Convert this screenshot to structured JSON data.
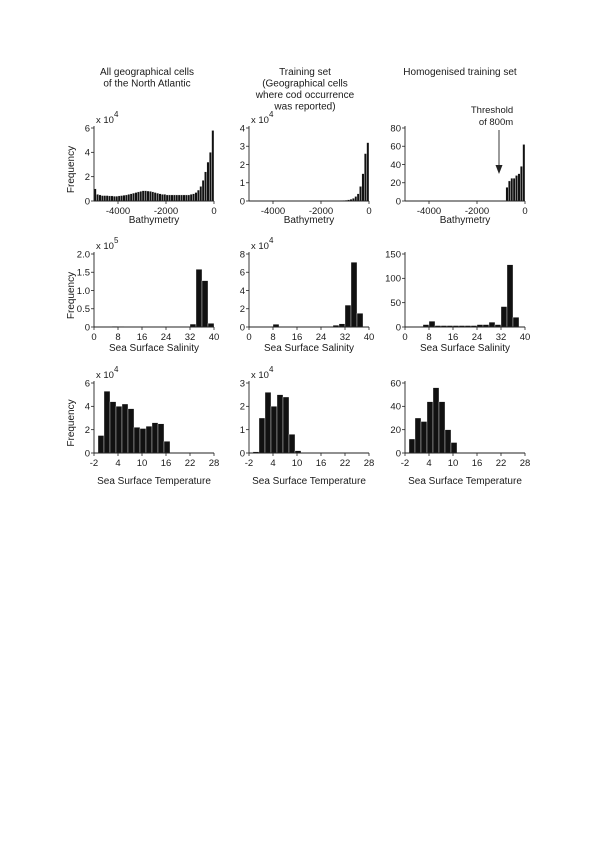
{
  "column_titles": [
    [
      "All geographical cells",
      "of the North Atlantic"
    ],
    [
      "Training set",
      "(Geographical cells",
      "where cod occurrence",
      "was reported)"
    ],
    [
      "Homogenised training set"
    ]
  ],
  "y_axis_label": "Frequency",
  "annotation": {
    "lines": [
      "Threshold",
      "of 800m"
    ]
  },
  "chart_data": [
    {
      "type": "bar",
      "row": 0,
      "col": 0,
      "xlabel": "Bathymetry",
      "ylabel": "Frequency",
      "xlim": [
        -5000,
        0
      ],
      "xticks": [
        -4000,
        -2000,
        0
      ],
      "xticklabels": [
        "-4000",
        "-2000",
        "0"
      ],
      "ylim": [
        0,
        6
      ],
      "yticks": [
        0,
        2,
        4,
        6
      ],
      "yticklabels": [
        "0",
        "2",
        "4",
        "6"
      ],
      "scale_label": "x 10",
      "scale_exponent": "4",
      "bin_start": -5000,
      "bin_width": 100,
      "values": [
        1.0,
        0.55,
        0.5,
        0.45,
        0.45,
        0.45,
        0.42,
        0.42,
        0.4,
        0.4,
        0.42,
        0.45,
        0.48,
        0.5,
        0.55,
        0.6,
        0.65,
        0.7,
        0.75,
        0.8,
        0.85,
        0.85,
        0.82,
        0.8,
        0.75,
        0.7,
        0.65,
        0.6,
        0.55,
        0.55,
        0.5,
        0.5,
        0.5,
        0.5,
        0.5,
        0.5,
        0.5,
        0.5,
        0.5,
        0.5,
        0.55,
        0.6,
        0.7,
        0.9,
        1.2,
        1.7,
        2.4,
        3.2,
        4.0,
        5.8
      ]
    },
    {
      "type": "bar",
      "row": 0,
      "col": 1,
      "xlabel": "Bathymetry",
      "ylabel": "",
      "xlim": [
        -5000,
        0
      ],
      "xticks": [
        -4000,
        -2000,
        0
      ],
      "xticklabels": [
        "-4000",
        "-2000",
        "0"
      ],
      "ylim": [
        0,
        4
      ],
      "yticks": [
        0,
        1,
        2,
        3,
        4
      ],
      "yticklabels": [
        "0",
        "1",
        "2",
        "3",
        "4"
      ],
      "scale_label": "x 10",
      "scale_exponent": "4",
      "bin_start": -5000,
      "bin_width": 100,
      "values": [
        0,
        0,
        0,
        0,
        0,
        0,
        0,
        0,
        0,
        0,
        0,
        0,
        0,
        0,
        0,
        0,
        0,
        0,
        0,
        0,
        0,
        0,
        0,
        0,
        0,
        0,
        0,
        0,
        0,
        0,
        0,
        0,
        0,
        0,
        0.01,
        0.01,
        0.02,
        0.02,
        0.03,
        0.04,
        0.05,
        0.07,
        0.1,
        0.15,
        0.25,
        0.4,
        0.8,
        1.5,
        2.6,
        3.2
      ]
    },
    {
      "type": "bar",
      "row": 0,
      "col": 2,
      "xlabel": "Bathymetry",
      "ylabel": "",
      "xlim": [
        -5000,
        0
      ],
      "xticks": [
        -4000,
        -2000,
        0
      ],
      "xticklabels": [
        "-4000",
        "-2000",
        "0"
      ],
      "ylim": [
        0,
        80
      ],
      "yticks": [
        0,
        20,
        40,
        60,
        80
      ],
      "yticklabels": [
        "0",
        "20",
        "40",
        "60",
        "80"
      ],
      "bin_start": -800,
      "bin_width": 100,
      "values": [
        15,
        22,
        25,
        25,
        28,
        30,
        38,
        62
      ]
    },
    {
      "type": "bar",
      "row": 1,
      "col": 0,
      "xlabel": "Sea Surface Salinity",
      "ylabel": "Frequency",
      "xlim": [
        0,
        40
      ],
      "xticks": [
        0,
        8,
        16,
        24,
        32,
        40
      ],
      "xticklabels": [
        "0",
        "8",
        "16",
        "24",
        "32",
        "40"
      ],
      "ylim": [
        0,
        2.0
      ],
      "yticks": [
        0,
        0.5,
        1.0,
        1.5,
        2.0
      ],
      "yticklabels": [
        "0",
        "0.5",
        "1.0",
        "1.5",
        "2.0"
      ],
      "scale_label": "x 10",
      "scale_exponent": "5",
      "bin_start": 0,
      "bin_width": 2,
      "values": [
        0,
        0,
        0,
        0.02,
        0.015,
        0.01,
        0,
        0,
        0,
        0,
        0.005,
        0,
        0,
        0,
        0,
        0.01,
        0.08,
        1.58,
        1.27,
        0.1
      ]
    },
    {
      "type": "bar",
      "row": 1,
      "col": 1,
      "xlabel": "Sea Surface Salinity",
      "ylabel": "",
      "xlim": [
        0,
        40
      ],
      "xticks": [
        0,
        8,
        16,
        24,
        32,
        40
      ],
      "xticklabels": [
        "0",
        "8",
        "16",
        "24",
        "32",
        "40"
      ],
      "ylim": [
        0,
        8
      ],
      "yticks": [
        0,
        2,
        4,
        6,
        8
      ],
      "yticklabels": [
        "0",
        "2",
        "4",
        "6",
        "8"
      ],
      "scale_label": "x 10",
      "scale_exponent": "4",
      "bin_start": 0,
      "bin_width": 2,
      "values": [
        0,
        0,
        0,
        0.05,
        0.3,
        0,
        0,
        0,
        0.05,
        0,
        0,
        0,
        0.05,
        0,
        0.2,
        0.35,
        2.4,
        7.1,
        1.5,
        0
      ]
    },
    {
      "type": "bar",
      "row": 1,
      "col": 2,
      "xlabel": "Sea Surface Salinity",
      "ylabel": "",
      "xlim": [
        0,
        40
      ],
      "xticks": [
        0,
        8,
        16,
        24,
        32,
        40
      ],
      "xticklabels": [
        "0",
        "8",
        "16",
        "24",
        "32",
        "40"
      ],
      "ylim": [
        0,
        150
      ],
      "yticks": [
        0,
        50,
        100,
        150
      ],
      "yticklabels": [
        "0",
        "50",
        "100",
        "150"
      ],
      "bin_start": 0,
      "bin_width": 2,
      "values": [
        0,
        0,
        0,
        5,
        12,
        3,
        3,
        3,
        3,
        3,
        3,
        3,
        5,
        5,
        10,
        5,
        42,
        128,
        20,
        0
      ]
    },
    {
      "type": "bar",
      "row": 2,
      "col": 0,
      "xlabel": "Sea Surface Temperature",
      "ylabel": "Frequency",
      "xlim": [
        -2,
        28
      ],
      "xticks": [
        -2,
        4,
        10,
        16,
        22,
        28
      ],
      "xticklabels": [
        "-2",
        "4",
        "10",
        "16",
        "22",
        "28"
      ],
      "ylim": [
        0,
        6
      ],
      "yticks": [
        0,
        2,
        4,
        6
      ],
      "yticklabels": [
        "0",
        "2",
        "4",
        "6"
      ],
      "scale_label": "x 10",
      "scale_exponent": "4",
      "bin_start": -1,
      "bin_width": 1.5,
      "values": [
        1.5,
        5.3,
        4.4,
        4.0,
        4.2,
        3.8,
        2.2,
        2.1,
        2.3,
        2.6,
        2.5,
        1.0
      ]
    },
    {
      "type": "bar",
      "row": 2,
      "col": 1,
      "xlabel": "Sea Surface Temperature",
      "ylabel": "",
      "xlim": [
        -2,
        28
      ],
      "xticks": [
        -2,
        4,
        10,
        16,
        22,
        28
      ],
      "xticklabels": [
        "-2",
        "4",
        "10",
        "16",
        "22",
        "28"
      ],
      "ylim": [
        0,
        3
      ],
      "yticks": [
        0,
        1,
        2,
        3
      ],
      "yticklabels": [
        "0",
        "1",
        "2",
        "3"
      ],
      "scale_label": "x 10",
      "scale_exponent": "4",
      "bin_start": -1,
      "bin_width": 1.5,
      "values": [
        0.05,
        1.5,
        2.6,
        2.0,
        2.5,
        2.4,
        0.8,
        0.1
      ]
    },
    {
      "type": "bar",
      "row": 2,
      "col": 2,
      "xlabel": "Sea Surface Temperature",
      "ylabel": "",
      "xlim": [
        -2,
        28
      ],
      "xticks": [
        -2,
        4,
        10,
        16,
        22,
        28
      ],
      "xticklabels": [
        "-2",
        "4",
        "10",
        "16",
        "22",
        "28"
      ],
      "ylim": [
        0,
        60
      ],
      "yticks": [
        0,
        20,
        40,
        60
      ],
      "yticklabels": [
        "0",
        "20",
        "40",
        "60"
      ],
      "bin_start": -1,
      "bin_width": 1.5,
      "values": [
        12,
        30,
        27,
        44,
        56,
        44,
        20,
        9
      ]
    }
  ]
}
